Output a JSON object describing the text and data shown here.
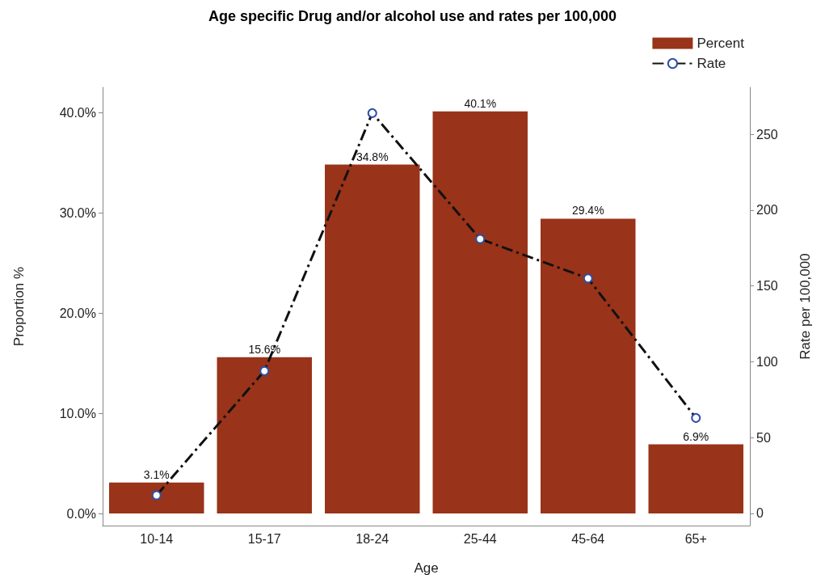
{
  "chart_data": {
    "type": "bar",
    "title": "Age specific Drug and/or alcohol use and rates per 100,000",
    "xlabel": "Age",
    "ylabel": "Proportion %",
    "y2label": "Rate per 100,000",
    "categories": [
      "10-14",
      "15-17",
      "18-24",
      "25-44",
      "45-64",
      "65+"
    ],
    "series": [
      {
        "name": "Percent",
        "color": "#993319",
        "values": [
          3.1,
          15.6,
          34.8,
          40.1,
          29.4,
          6.9
        ],
        "value_labels": [
          "3.1%",
          "15.6%",
          "34.8%",
          "40.1%",
          "29.4%",
          "6.9%"
        ]
      },
      {
        "name": "Rate",
        "type": "line",
        "axis": "y2",
        "color": "#111111",
        "values": [
          12,
          94,
          264,
          181,
          155,
          63
        ],
        "marker": "circle",
        "line_style": "dashed"
      }
    ],
    "ylim": [
      -1.2,
      42.5
    ],
    "yticks": [
      {
        "value": 0,
        "label": "0.0%"
      },
      {
        "value": 10,
        "label": "10.0%"
      },
      {
        "value": 20,
        "label": "20.0%"
      },
      {
        "value": 30,
        "label": "30.0%"
      },
      {
        "value": 40,
        "label": "40.0%"
      }
    ],
    "y2lim": [
      -8,
      281
    ],
    "y2ticks": [
      0,
      50,
      100,
      150,
      200,
      250
    ],
    "grid": false,
    "legend": "top right"
  }
}
